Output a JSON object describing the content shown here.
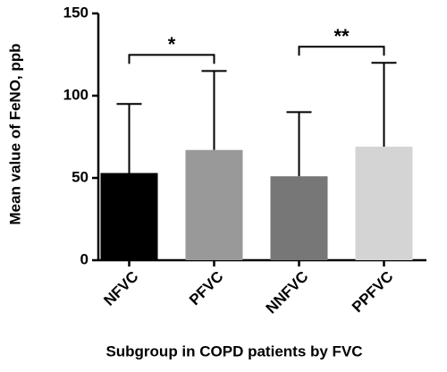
{
  "chart_data": {
    "type": "bar",
    "x_label": "Subgroup in COPD patients by FVC",
    "y_label": "Mean value of FeNO, ppb",
    "categories": [
      "NFVC",
      "PFVC",
      "NNFVC",
      "PPFVC"
    ],
    "values": [
      53,
      67,
      51,
      69
    ],
    "errors": [
      42,
      48,
      39,
      51
    ],
    "colors": [
      "#000000",
      "#999999",
      "#777777",
      "#d4d4d4"
    ],
    "ylim": [
      0,
      150
    ],
    "yticks": [
      0,
      50,
      100,
      150
    ],
    "annotations": [
      {
        "label": "*",
        "between": [
          "NFVC",
          "PFVC"
        ]
      },
      {
        "label": "**",
        "between": [
          "NNFVC",
          "PPFVC"
        ]
      }
    ]
  }
}
